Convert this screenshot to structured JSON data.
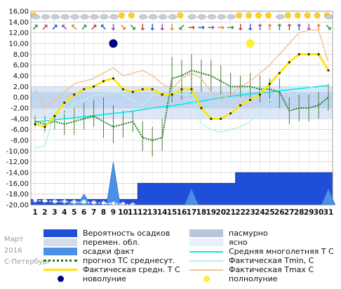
{
  "side_text": {
    "month": "Март",
    "year": "2016",
    "city": "С-Петербург"
  },
  "colors": {
    "precip_prob": "#1f4fd8",
    "overcast": "#b8c4dc",
    "variable_cloud": "#d4dcec",
    "precip_fact": "#4a90e8",
    "clear": "#e8f0fa",
    "normal": "#00e8e8",
    "forecast": "#1a7a1a",
    "fact_mean": "#ffe600",
    "tmin": "#b8f0f0",
    "tmax": "#f2c29a",
    "new_moon": "#000080",
    "full_moon": "#ffee33",
    "bg_band_light": "#dce8f8",
    "bg_band_mid": "#a9c7ee"
  },
  "legend": [
    {
      "key": "precip_prob",
      "label": "Вероятность осадков",
      "kind": "box"
    },
    {
      "key": "overcast",
      "label": "пасмурно",
      "kind": "box"
    },
    {
      "key": "variable_cloud",
      "label": "перемен. обл.",
      "kind": "box"
    },
    {
      "key": "clear",
      "label": "ясно",
      "kind": "box"
    },
    {
      "key": "precip_fact",
      "label": "осадки факт",
      "kind": "box"
    },
    {
      "key": "normal",
      "label": "Средняя многолетняя Т С",
      "kind": "line"
    },
    {
      "key": "forecast",
      "label": "прогноз ТС среднесут.",
      "kind": "dotted"
    },
    {
      "key": "tmin",
      "label": "Фактическая Tmin, С",
      "kind": "line"
    },
    {
      "key": "fact_mean",
      "label": "Фактическая средн. Т С",
      "kind": "thick"
    },
    {
      "key": "tmax",
      "label": "Фактическая Tmax С",
      "kind": "line"
    },
    {
      "key": "new_moon",
      "label": "новолуние",
      "kind": "dot"
    },
    {
      "key": "full_moon",
      "label": "полнолуние",
      "kind": "dot"
    }
  ],
  "weather_icons": [
    "sun-cloud",
    "cloud",
    "cloud",
    "cloud",
    "cloud",
    "cloud",
    "cloud",
    "cloud",
    "cloud",
    "sun",
    "sun",
    "cloud",
    "cloud",
    "cloud",
    "cloud",
    "sun",
    "cloud",
    "cloud",
    "cloud",
    "cloud",
    "cloud",
    "sun",
    "sun",
    "sun",
    "sun",
    "cloud",
    "sun",
    "sun",
    "sun",
    "sun",
    "sun-cloud"
  ],
  "wind_arrows": [
    "↗",
    "↗",
    "↗",
    "↖",
    "↖",
    "↗",
    "↗",
    "↖",
    "↓",
    "↘",
    "↘",
    "↓",
    "↓",
    "↓",
    "↓",
    "↙",
    "→",
    "→",
    "→",
    "→",
    "→",
    "↓",
    "↓",
    "↑",
    "↑",
    "↑",
    "↑",
    "↑",
    "↓",
    "↑",
    "↘"
  ],
  "chart_data": {
    "type": "line",
    "x": [
      1,
      2,
      3,
      4,
      5,
      6,
      7,
      8,
      9,
      10,
      11,
      12,
      13,
      14,
      15,
      16,
      17,
      18,
      19,
      20,
      21,
      22,
      23,
      24,
      25,
      26,
      27,
      28,
      29,
      30,
      31
    ],
    "xlabels": [
      "1",
      "2",
      "3",
      "4",
      "5",
      "6",
      "7",
      "8",
      "9",
      "10",
      "11",
      "12",
      "13",
      "14",
      "15",
      "16",
      "17",
      "18",
      "19",
      "20",
      "21",
      "22",
      "23",
      "24",
      "25",
      "26",
      "27",
      "28",
      "29",
      "30",
      "31"
    ],
    "ylim": [
      -20,
      16
    ],
    "yticks": [
      16,
      14,
      12,
      10,
      8,
      6,
      4,
      2,
      0,
      -2,
      -4,
      -6,
      -8,
      -10,
      -12,
      -14,
      -16,
      -18,
      -20
    ],
    "yticklabels": [
      "16,00",
      "14,00",
      "12,00",
      "10,00",
      "8,00",
      "6,00",
      "4,00",
      "2,00",
      "0,00",
      "-2,00",
      "-4,00",
      "-6,00",
      "-8,00",
      "-10,00",
      "-12,00",
      "-14,00",
      "-16,00",
      "-18,00",
      "-20,00"
    ],
    "series": [
      {
        "name": "Средняя многолетняя Т С",
        "key": "normal",
        "values": [
          -4.5,
          -4.4,
          -4.2,
          -4.0,
          -3.8,
          -3.6,
          -3.4,
          -3.2,
          -3.0,
          -2.8,
          -2.6,
          -2.3,
          -2.0,
          -1.8,
          -1.6,
          -1.3,
          -1.0,
          -0.7,
          -0.4,
          -0.1,
          0.2,
          0.4,
          0.6,
          0.8,
          1.0,
          1.2,
          1.4,
          1.6,
          1.8,
          2.0,
          2.2
        ]
      },
      {
        "name": "Фактическая Tmin, С",
        "key": "tmin",
        "values": [
          -9.5,
          -9.0,
          -3.0,
          -3.0,
          -1.0,
          -0.5,
          0.5,
          0.5,
          1.0,
          0.5,
          -0.5,
          -1.5,
          0.5,
          0.5,
          1.0,
          0.5,
          0.5,
          -5.0,
          -6.0,
          -6.5,
          -6.0,
          -5.5,
          -4.5,
          -2.5,
          -0.5,
          1.5,
          2.0,
          2.0,
          2.0,
          1.5,
          1.5
        ]
      },
      {
        "name": "Фактическая Tmax С",
        "key": "tmax",
        "values": [
          1.5,
          -2.0,
          -0.5,
          1.0,
          2.5,
          3.0,
          3.5,
          4.5,
          5.5,
          4.0,
          4.5,
          5.0,
          4.0,
          2.5,
          1.5,
          3.5,
          4.5,
          3.5,
          1.0,
          -0.5,
          0.5,
          2.0,
          3.0,
          4.5,
          6.0,
          8.0,
          10.0,
          12.0,
          12.5,
          12.5,
          6.5
        ]
      },
      {
        "name": "Фактическая средн. Т С",
        "key": "fact_mean",
        "values": [
          -5.0,
          -5.5,
          -3.5,
          -1.0,
          0.5,
          1.5,
          2.0,
          3.0,
          3.5,
          1.5,
          1.0,
          1.5,
          1.5,
          0.5,
          0.5,
          1.5,
          1.5,
          -2.0,
          -4.0,
          -4.0,
          -3.0,
          -1.5,
          -0.5,
          0.5,
          2.5,
          4.5,
          6.5,
          8.0,
          8.0,
          8.0,
          5.0
        ]
      },
      {
        "name": "прогноз ТС среднесут.",
        "key": "forecast",
        "values": [
          -4.5,
          -5.0,
          -4.5,
          -5.0,
          -4.5,
          -4.0,
          -3.5,
          -4.5,
          -5.5,
          -5.0,
          -4.5,
          -7.5,
          -8.0,
          -7.5,
          3.5,
          4.0,
          5.0,
          4.5,
          4.0,
          3.0,
          2.0,
          2.0,
          2.0,
          1.5,
          1.5,
          1.0,
          -2.5,
          -2.0,
          -2.0,
          -1.5,
          0.0
        ]
      },
      {
        "name": "Вероятность осадков",
        "key": "precip_prob",
        "values": [
          -19,
          -19,
          -19,
          -19,
          -19,
          -19,
          -19,
          -19,
          -19,
          -19,
          -19,
          -16,
          -16,
          -16,
          -16,
          -16,
          -16,
          -16,
          -16,
          -16,
          -16,
          -14,
          -14,
          -14,
          -14,
          -14,
          -14,
          -14,
          -14,
          -14,
          -14
        ]
      },
      {
        "name": "осадки факт",
        "key": "precip_fact",
        "values": [
          -20,
          -20,
          -20,
          -20,
          -19,
          -18,
          -20,
          -20,
          -12,
          -20,
          -20,
          -20,
          -20,
          -20,
          -20,
          -20,
          -17,
          -20,
          -20,
          -20,
          -20,
          -20,
          -20,
          -20,
          -20,
          -20,
          -20,
          -20,
          -20,
          -20,
          -17
        ]
      },
      {
        "name": "перемен. обл.",
        "key": "variable_cloud",
        "values": [
          -19.2,
          -19.3,
          -19.4,
          -19.4,
          -19.5,
          -19.5,
          -19.6,
          -19.7,
          -19.8,
          -19.9,
          -20,
          -20,
          -20,
          -20,
          -20,
          -20,
          -20,
          -20,
          -20,
          -20,
          -20,
          -20,
          -20,
          -20,
          -20,
          -20,
          -20,
          -20,
          -20,
          -20,
          -20
        ]
      }
    ],
    "forecast_whiskers": [
      [
        -5.5,
        -3.5
      ],
      [
        -6.5,
        -3.5
      ],
      [
        -6.0,
        -3.0
      ],
      [
        -7.0,
        -2.5
      ],
      [
        -7.0,
        -2.0
      ],
      [
        -6.0,
        -1.0
      ],
      [
        -5.5,
        -0.5
      ],
      [
        -7.5,
        0.0
      ],
      [
        -8.5,
        -1.5
      ],
      [
        -7.5,
        -2.5
      ],
      [
        -6.5,
        -2.5
      ],
      [
        -10.0,
        -4.5
      ],
      [
        -11.0,
        -5.5
      ],
      [
        -10.0,
        -4.0
      ],
      [
        -1.0,
        7.5
      ],
      [
        -0.5,
        7.0
      ],
      [
        0.0,
        8.0
      ],
      [
        1.0,
        7.0
      ],
      [
        1.0,
        7.0
      ],
      [
        0.5,
        6.0
      ],
      [
        0.0,
        4.5
      ],
      [
        0.0,
        4.0
      ],
      [
        0.0,
        4.5
      ],
      [
        -1.0,
        4.0
      ],
      [
        -1.0,
        3.5
      ],
      [
        -2.0,
        3.5
      ],
      [
        -5.0,
        0.0
      ],
      [
        -4.5,
        0.5
      ],
      [
        -4.5,
        0.5
      ],
      [
        -4.0,
        1.0
      ],
      [
        -2.5,
        2.5
      ]
    ],
    "new_moon_day": 9,
    "full_moon_day": 23
  }
}
